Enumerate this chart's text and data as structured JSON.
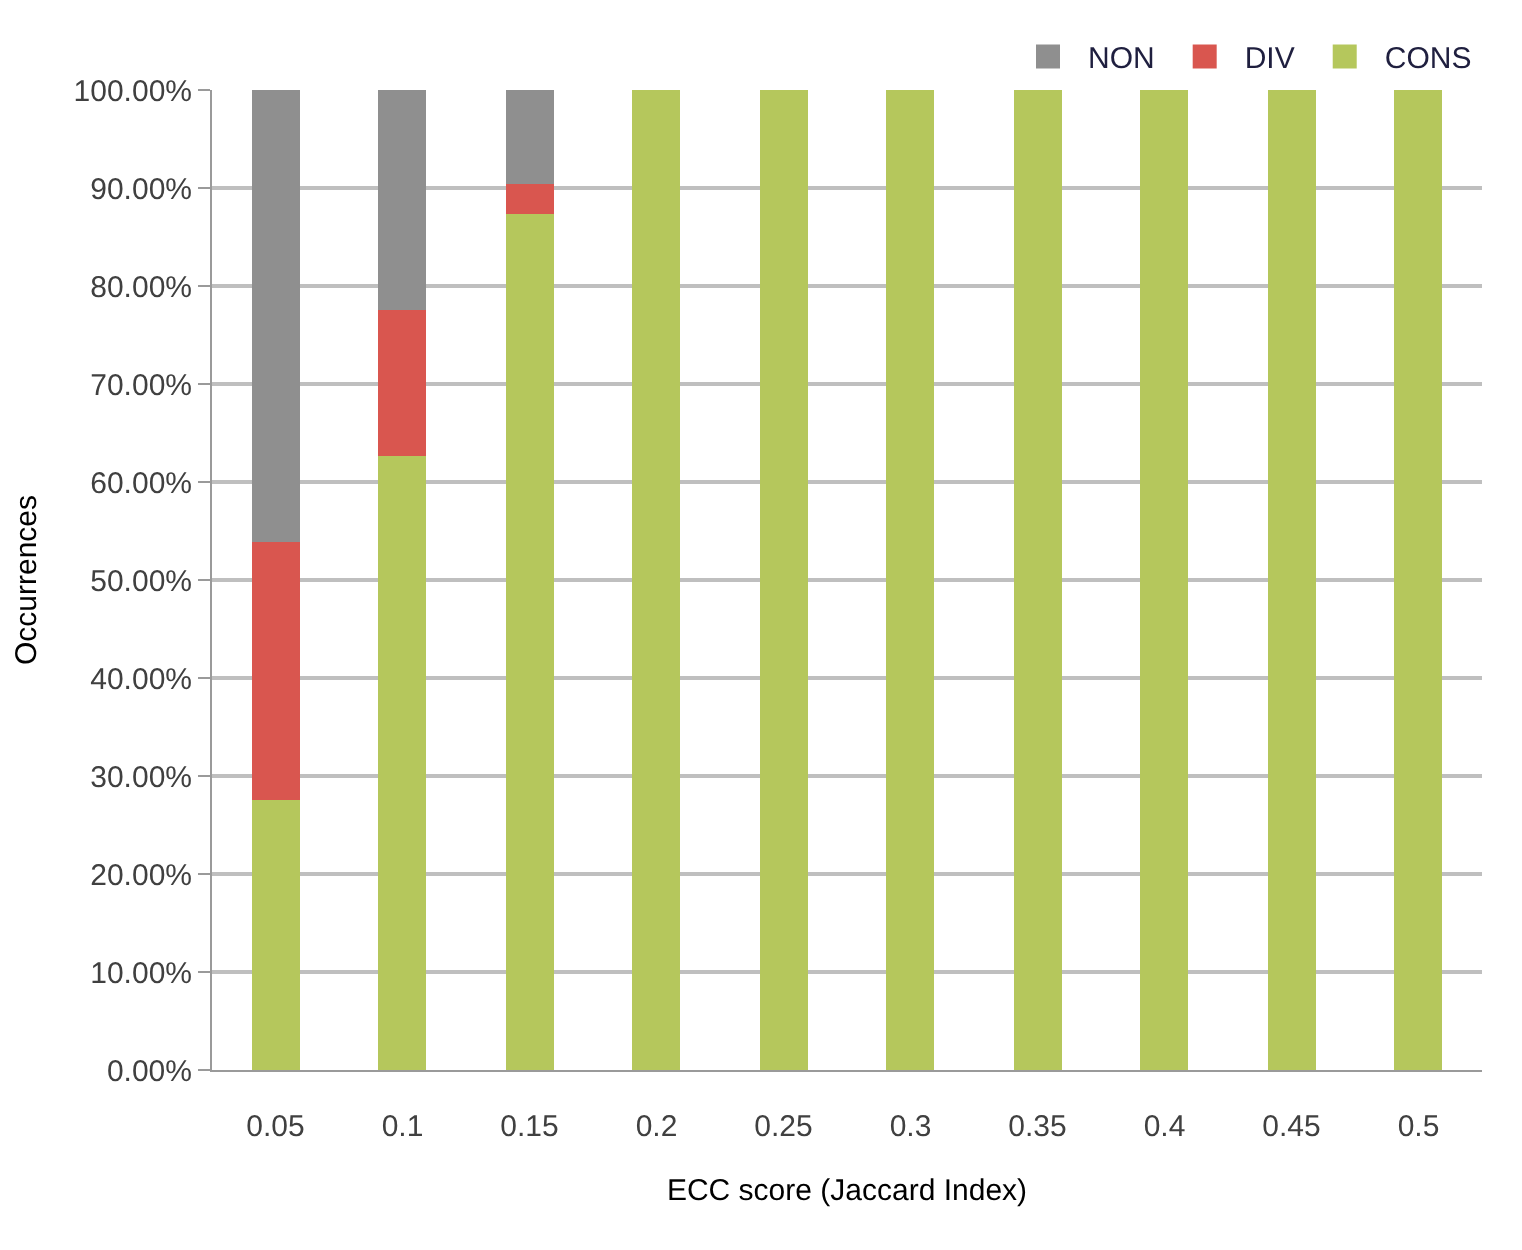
{
  "chart_data": {
    "type": "bar",
    "stacked": true,
    "xlabel": "ECC score (Jaccard Index)",
    "ylabel": "Occurrences",
    "categories": [
      "0.05",
      "0.1",
      "0.15",
      "0.2",
      "0.25",
      "0.3",
      "0.35",
      "0.4",
      "0.45",
      "0.5"
    ],
    "series": [
      {
        "name": "CONS",
        "color": "#b5c75c",
        "values": [
          27.5,
          62.6,
          87.4,
          100,
          100,
          100,
          100,
          100,
          100,
          100
        ]
      },
      {
        "name": "DIV",
        "color": "#d9564f",
        "values": [
          26.3,
          15.0,
          3.1,
          0,
          0,
          0,
          0,
          0,
          0,
          0
        ]
      },
      {
        "name": "NON",
        "color": "#8f8f8f",
        "values": [
          46.2,
          22.4,
          9.5,
          0,
          0,
          0,
          0,
          0,
          0,
          0
        ]
      }
    ],
    "ylim": [
      0,
      100
    ],
    "yticks": [
      {
        "value": 0,
        "label": "0.00%"
      },
      {
        "value": 10,
        "label": "10.00%"
      },
      {
        "value": 20,
        "label": "20.00%"
      },
      {
        "value": 30,
        "label": "30.00%"
      },
      {
        "value": 40,
        "label": "40.00%"
      },
      {
        "value": 50,
        "label": "50.00%"
      },
      {
        "value": 60,
        "label": "60.00%"
      },
      {
        "value": 70,
        "label": "70.00%"
      },
      {
        "value": 80,
        "label": "80.00%"
      },
      {
        "value": 90,
        "label": "90.00%"
      },
      {
        "value": 100,
        "label": "100.00%"
      }
    ],
    "grid": "y",
    "legend": "top right"
  }
}
